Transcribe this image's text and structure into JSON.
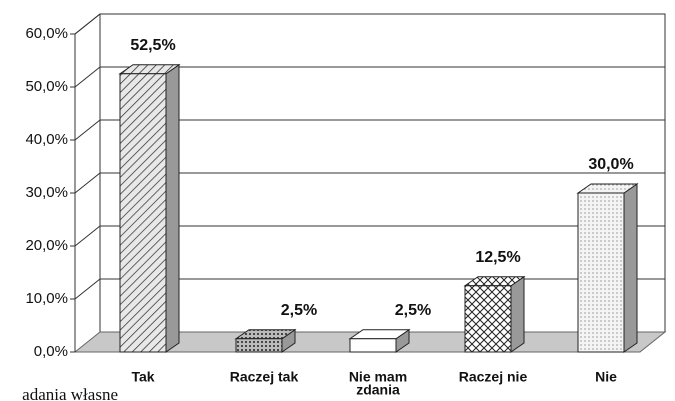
{
  "chart_data": {
    "type": "bar3d",
    "categories": [
      "Tak",
      "Raczej tak",
      [
        "Nie mam",
        "zdania"
      ],
      "Raczej nie",
      "Nie"
    ],
    "values": [
      52.5,
      2.5,
      2.5,
      12.5,
      30.0
    ],
    "value_labels": [
      "52,5%",
      "2,5%",
      "2,5%",
      "12,5%",
      "30,0%"
    ],
    "ylim": [
      0,
      60
    ],
    "yticks": [
      {
        "value": 0,
        "label": "0,0%"
      },
      {
        "value": 10,
        "label": "10,0%"
      },
      {
        "value": 20,
        "label": "20,0%"
      },
      {
        "value": 30,
        "label": "30,0%"
      },
      {
        "value": 40,
        "label": "40,0%"
      },
      {
        "value": 50,
        "label": "50,0%"
      },
      {
        "value": 60,
        "label": "60,0%"
      }
    ],
    "grid": true,
    "note": "adania własne"
  }
}
